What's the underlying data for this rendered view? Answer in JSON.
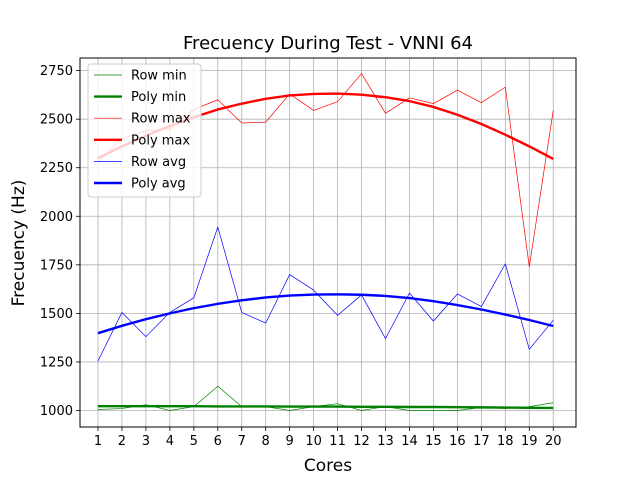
{
  "chart_data": {
    "type": "line",
    "title": "Frecuency During Test - VNNI 64",
    "xlabel": "Cores",
    "ylabel": "Frecuency (Hz)",
    "x": [
      1,
      2,
      3,
      4,
      5,
      6,
      7,
      8,
      9,
      10,
      11,
      12,
      13,
      14,
      15,
      16,
      17,
      18,
      19,
      20
    ],
    "xlim": [
      0.25,
      20.95
    ],
    "ylim": [
      915,
      2815
    ],
    "yticks": [
      1000,
      1250,
      1500,
      1750,
      2000,
      2250,
      2500,
      2750
    ],
    "grid": true,
    "legend_position": "top-left",
    "series": [
      {
        "name": "Row min",
        "color": "#008000",
        "style": "thin",
        "values": [
          1005,
          1010,
          1030,
          1000,
          1020,
          1125,
          1020,
          1020,
          1000,
          1020,
          1035,
          1000,
          1020,
          1000,
          1000,
          1000,
          1015,
          1010,
          1020,
          1040
        ]
      },
      {
        "name": "Poly min",
        "color": "#008000",
        "style": "thick",
        "values": [
          1022,
          1022,
          1022,
          1022,
          1022,
          1021,
          1021,
          1021,
          1020,
          1020,
          1020,
          1019,
          1019,
          1018,
          1018,
          1017,
          1016,
          1015,
          1014,
          1013
        ]
      },
      {
        "name": "Row max",
        "color": "#ff0000",
        "style": "thin",
        "values": [
          2280,
          2400,
          2440,
          2450,
          2550,
          2600,
          2480,
          2485,
          2630,
          2545,
          2590,
          2735,
          2530,
          2610,
          2580,
          2650,
          2585,
          2665,
          1740,
          2545
        ]
      },
      {
        "name": "Poly max",
        "color": "#ff0000",
        "style": "thick",
        "values": [
          2300,
          2360,
          2415,
          2465,
          2510,
          2550,
          2580,
          2605,
          2622,
          2630,
          2632,
          2626,
          2613,
          2593,
          2563,
          2523,
          2475,
          2420,
          2360,
          2295
        ]
      },
      {
        "name": "Row avg",
        "color": "#0000ff",
        "style": "thin",
        "values": [
          1255,
          1505,
          1380,
          1505,
          1580,
          1945,
          1505,
          1450,
          1700,
          1620,
          1490,
          1595,
          1370,
          1605,
          1460,
          1600,
          1535,
          1755,
          1315,
          1465
        ]
      },
      {
        "name": "Poly avg",
        "color": "#0000ff",
        "style": "thick",
        "values": [
          1398,
          1436,
          1470,
          1500,
          1527,
          1549,
          1567,
          1582,
          1592,
          1597,
          1598,
          1596,
          1590,
          1579,
          1563,
          1543,
          1520,
          1494,
          1466,
          1435
        ]
      }
    ]
  }
}
